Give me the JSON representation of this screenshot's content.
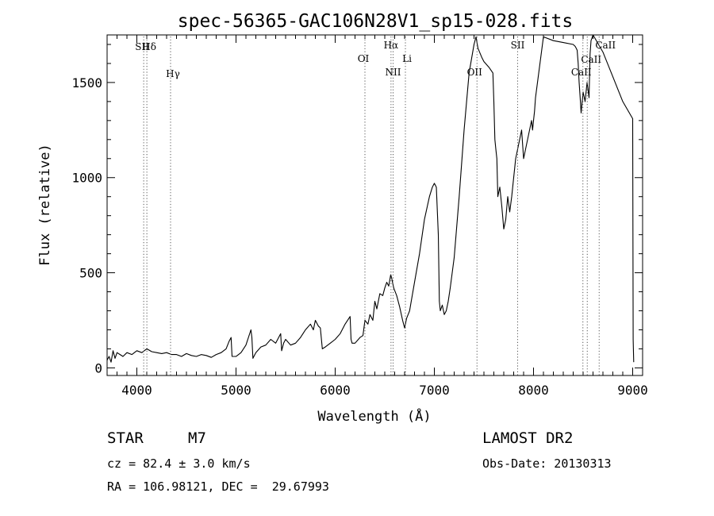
{
  "chart_data": {
    "type": "line",
    "title": "spec-56365-GAC106N28V1_sp15-028.fits",
    "xlabel": "Wavelength (Å)",
    "ylabel": "Flux (relative)",
    "xlim": [
      3700,
      9100
    ],
    "ylim": [
      -40,
      1750
    ],
    "xticks": [
      4000,
      5000,
      6000,
      7000,
      8000,
      9000
    ],
    "yticks": [
      0,
      500,
      1000,
      1500
    ],
    "grid": false,
    "series": [
      {
        "x": [
          3700,
          3720,
          3740,
          3760,
          3780,
          3800,
          3830,
          3860,
          3900,
          3950,
          4000,
          4050,
          4100,
          4150,
          4200,
          4250,
          4300,
          4350,
          4400,
          4450,
          4500,
          4550,
          4600,
          4650,
          4700,
          4750,
          4800,
          4850,
          4900,
          4930,
          4950,
          4960,
          5000,
          5050,
          5100,
          5150,
          5160,
          5170,
          5180,
          5200,
          5250,
          5300,
          5350,
          5400,
          5450,
          5460,
          5480,
          5500,
          5550,
          5600,
          5650,
          5700,
          5750,
          5780,
          5800,
          5830,
          5850,
          5870,
          5900,
          5950,
          6000,
          6050,
          6100,
          6150,
          6160,
          6170,
          6200,
          6250,
          6280,
          6300,
          6330,
          6350,
          6380,
          6400,
          6420,
          6450,
          6480,
          6500,
          6520,
          6540,
          6560,
          6570,
          6590,
          6620,
          6650,
          6680,
          6700,
          6720,
          6750,
          6800,
          6850,
          6900,
          6950,
          6980,
          7000,
          7020,
          7040,
          7050,
          7060,
          7080,
          7100,
          7120,
          7140,
          7160,
          7200,
          7250,
          7300,
          7350,
          7400,
          7420,
          7440,
          7480,
          7500,
          7550,
          7590,
          7600,
          7610,
          7620,
          7630,
          7640,
          7660,
          7680,
          7700,
          7720,
          7740,
          7760,
          7780,
          7800,
          7820,
          7840,
          7860,
          7880,
          7900,
          7920,
          7940,
          7960,
          7980,
          7990,
          8000,
          8010,
          8020,
          8100,
          8200,
          8300,
          8400,
          8420,
          8430,
          8440,
          8450,
          8460,
          8470,
          8480,
          8500,
          8520,
          8540,
          8560,
          8570,
          8580,
          8600,
          8700,
          8800,
          8900,
          9000,
          9005,
          9010
        ],
        "y": [
          40,
          60,
          30,
          90,
          50,
          80,
          70,
          60,
          80,
          70,
          90,
          80,
          100,
          85,
          80,
          75,
          80,
          70,
          70,
          60,
          75,
          65,
          60,
          70,
          65,
          55,
          70,
          80,
          100,
          140,
          160,
          60,
          60,
          80,
          120,
          200,
          160,
          50,
          60,
          80,
          110,
          120,
          150,
          130,
          180,
          90,
          130,
          150,
          120,
          130,
          160,
          200,
          230,
          200,
          250,
          220,
          210,
          100,
          110,
          130,
          150,
          180,
          230,
          270,
          150,
          130,
          130,
          160,
          170,
          250,
          230,
          280,
          250,
          350,
          310,
          390,
          380,
          420,
          450,
          430,
          490,
          470,
          420,
          380,
          320,
          250,
          210,
          260,
          300,
          450,
          600,
          780,
          900,
          950,
          970,
          950,
          700,
          350,
          300,
          330,
          280,
          300,
          350,
          420,
          580,
          900,
          1250,
          1550,
          1700,
          1740,
          1680,
          1630,
          1610,
          1580,
          1550,
          1400,
          1200,
          1150,
          1100,
          900,
          950,
          850,
          730,
          780,
          900,
          820,
          900,
          1000,
          1100,
          1150,
          1200,
          1250,
          1100,
          1150,
          1200,
          1250,
          1300,
          1250,
          1300,
          1350,
          1420,
          1740,
          1720,
          1710,
          1700,
          1690,
          1680,
          1670,
          1600,
          1500,
          1420,
          1340,
          1450,
          1400,
          1500,
          1420,
          1650,
          1720,
          1750,
          1660,
          1530,
          1400,
          1310,
          150,
          30
        ]
      }
    ],
    "annotations": [
      {
        "text": "Hδ",
        "x": 4101
      },
      {
        "text": "SII",
        "x": 4069
      },
      {
        "text": "Hγ",
        "x": 4340
      },
      {
        "text": "OI",
        "x": 6300
      },
      {
        "text": "Hα",
        "x": 6563
      },
      {
        "text": "NII",
        "x": 6584
      },
      {
        "text": "Li",
        "x": 6708
      },
      {
        "text": "OII",
        "x": 7430
      },
      {
        "text": "SII",
        "x": 7840
      },
      {
        "text": "CaII",
        "x": 8498
      },
      {
        "text": "CaII",
        "x": 8542
      },
      {
        "text": "CaII",
        "x": 8662
      }
    ]
  },
  "info": {
    "object_class": "STAR",
    "object_subclass": "M7",
    "survey": "LAMOST DR2",
    "cz": "cz = 82.4 ± 3.0 km/s",
    "obs_date": "Obs-Date: 20130313",
    "radec": "RA = 106.98121, DEC =  29.67993"
  }
}
